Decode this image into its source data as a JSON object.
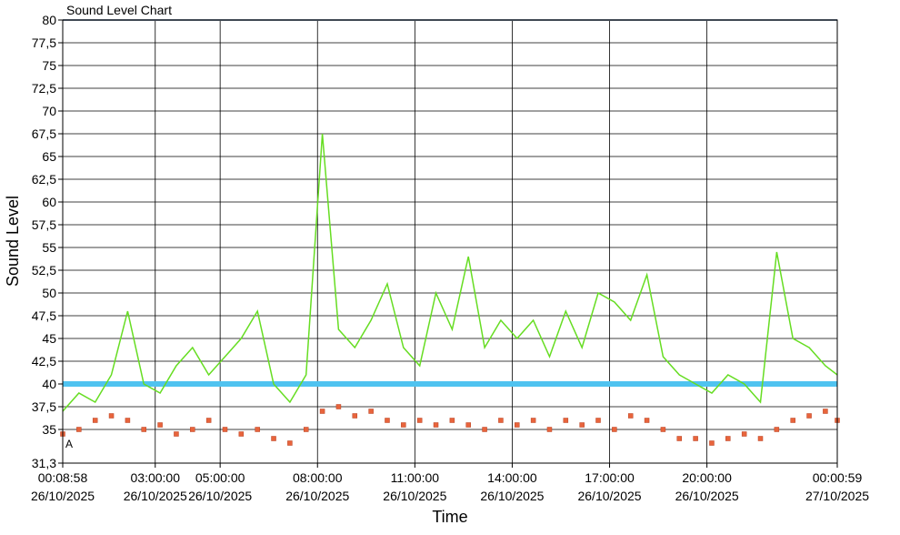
{
  "chart_data": {
    "type": "line",
    "title": "Sound Level Chart",
    "xlabel": "Time",
    "ylabel": "Sound Level",
    "annotation": "A",
    "xlim": [
      "2025-10-26T00:08:58",
      "2025-10-27T00:00:59"
    ],
    "xticks": [
      {
        "value": "2025-10-26T00:08:58",
        "label": [
          "00:08:58",
          "26/10/2025"
        ]
      },
      {
        "value": "2025-10-26T03:00:00",
        "label": [
          "03:00:00",
          "26/10/2025"
        ]
      },
      {
        "value": "2025-10-26T05:00:00",
        "label": [
          "05:00:00",
          "26/10/2025"
        ]
      },
      {
        "value": "2025-10-26T08:00:00",
        "label": [
          "08:00:00",
          "26/10/2025"
        ]
      },
      {
        "value": "2025-10-26T11:00:00",
        "label": [
          "11:00:00",
          "26/10/2025"
        ]
      },
      {
        "value": "2025-10-26T14:00:00",
        "label": [
          "14:00:00",
          "26/10/2025"
        ]
      },
      {
        "value": "2025-10-26T17:00:00",
        "label": [
          "17:00:00",
          "26/10/2025"
        ]
      },
      {
        "value": "2025-10-26T20:00:00",
        "label": [
          "20:00:00",
          "26/10/2025"
        ]
      },
      {
        "value": "2025-10-27T00:00:59",
        "label": [
          "00:00:59",
          "27/10/2025"
        ]
      }
    ],
    "ylim": [
      31.3,
      80
    ],
    "yticks": [
      {
        "value": 31.3,
        "label": "31,3"
      },
      35,
      {
        "value": 37.5,
        "label": "37,5"
      },
      40,
      {
        "value": 42.5,
        "label": "42,5"
      },
      45,
      {
        "value": 47.5,
        "label": "47,5"
      },
      50,
      {
        "value": 52.5,
        "label": "52,5"
      },
      55,
      {
        "value": 57.5,
        "label": "57,5"
      },
      60,
      {
        "value": 62.5,
        "label": "62,5"
      },
      65,
      {
        "value": 67.5,
        "label": "67,5"
      },
      70,
      {
        "value": 72.5,
        "label": "72,5"
      },
      75,
      {
        "value": 77.5,
        "label": "77,5"
      },
      80
    ],
    "grid": true,
    "reference_lines": [
      {
        "value": 40,
        "color": "#4fc3f0"
      },
      {
        "value": 80,
        "color": "#7f8fa6"
      }
    ],
    "x": [
      "2025-10-26T00:08:58",
      "2025-10-26T00:38:58",
      "2025-10-26T01:08:58",
      "2025-10-26T01:38:58",
      "2025-10-26T02:08:58",
      "2025-10-26T02:38:58",
      "2025-10-26T03:08:58",
      "2025-10-26T03:38:58",
      "2025-10-26T04:08:58",
      "2025-10-26T04:38:58",
      "2025-10-26T05:08:58",
      "2025-10-26T05:38:58",
      "2025-10-26T06:08:58",
      "2025-10-26T06:38:58",
      "2025-10-26T07:08:58",
      "2025-10-26T07:38:58",
      "2025-10-26T08:08:58",
      "2025-10-26T08:38:58",
      "2025-10-26T09:08:58",
      "2025-10-26T09:38:58",
      "2025-10-26T10:08:58",
      "2025-10-26T10:38:58",
      "2025-10-26T11:08:58",
      "2025-10-26T11:38:58",
      "2025-10-26T12:08:58",
      "2025-10-26T12:38:58",
      "2025-10-26T13:08:58",
      "2025-10-26T13:38:58",
      "2025-10-26T14:08:58",
      "2025-10-26T14:38:58",
      "2025-10-26T15:08:58",
      "2025-10-26T15:38:58",
      "2025-10-26T16:08:58",
      "2025-10-26T16:38:58",
      "2025-10-26T17:08:58",
      "2025-10-26T17:38:58",
      "2025-10-26T18:08:58",
      "2025-10-26T18:38:58",
      "2025-10-26T19:08:58",
      "2025-10-26T19:38:58",
      "2025-10-26T20:08:58",
      "2025-10-26T20:38:58",
      "2025-10-26T21:08:58",
      "2025-10-26T21:38:58",
      "2025-10-26T22:08:58",
      "2025-10-26T22:38:58",
      "2025-10-26T23:08:58",
      "2025-10-26T23:38:58",
      "2025-10-27T00:00:59"
    ],
    "series": [
      {
        "color": "#66dd22",
        "marker": false,
        "values": [
          37,
          39,
          38,
          41,
          48,
          40,
          39,
          42,
          44,
          41,
          43,
          45,
          48,
          40,
          38,
          41,
          67.5,
          46,
          44,
          47,
          51,
          44,
          42,
          50,
          46,
          54,
          44,
          47,
          45,
          47,
          43,
          48,
          44,
          50,
          49,
          47,
          52,
          43,
          41,
          40,
          39,
          41,
          40,
          38,
          54.5,
          45,
          44,
          42,
          41
        ]
      },
      {
        "color": "#e8643c",
        "marker": true,
        "values": [
          34.5,
          35,
          36,
          36.5,
          36,
          35,
          35.5,
          34.5,
          35,
          36,
          35,
          34.5,
          35,
          34,
          33.5,
          35,
          37,
          37.5,
          36.5,
          37,
          36,
          35.5,
          36,
          35.5,
          36,
          35.5,
          35,
          36,
          35.5,
          36,
          35,
          36,
          35.5,
          36,
          35,
          36.5,
          36,
          35,
          34,
          34,
          33.5,
          34,
          34.5,
          34,
          35,
          36,
          36.5,
          37,
          36
        ]
      }
    ]
  }
}
